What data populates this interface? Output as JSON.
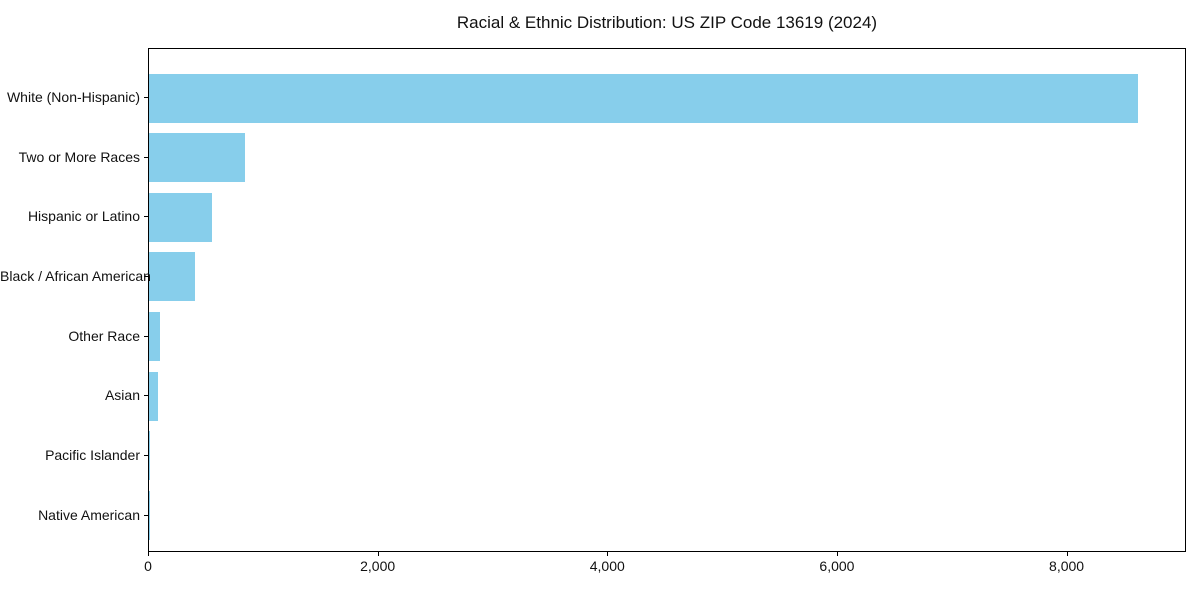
{
  "chart_data": {
    "type": "bar",
    "orientation": "horizontal",
    "title": "Racial & Ethnic Distribution: US ZIP Code 13619 (2024)",
    "xlabel": "",
    "ylabel": "",
    "categories": [
      "White (Non-Hispanic)",
      "Two or More Races",
      "Hispanic or Latino",
      "Black / African American",
      "Other Race",
      "Asian",
      "Pacific Islander",
      "Native American"
    ],
    "values": [
      8610,
      840,
      550,
      400,
      95,
      75,
      5,
      2
    ],
    "xlim": [
      0,
      9040
    ],
    "x_ticks": [
      0,
      2000,
      4000,
      6000,
      8000
    ],
    "x_tick_labels": [
      "0",
      "2,000",
      "4,000",
      "6,000",
      "8,000"
    ],
    "bar_color": "#87CEEB",
    "grid": false,
    "legend": null,
    "background_color": "#ffffff",
    "spine_color": "#000000"
  }
}
